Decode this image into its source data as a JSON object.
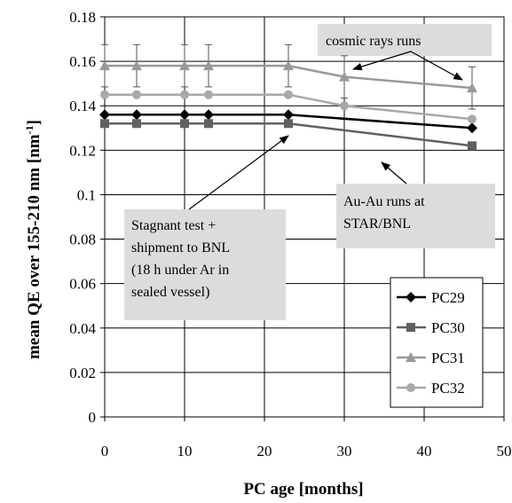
{
  "chart_data": {
    "type": "line",
    "xlabel": "PC age [months]",
    "ylabel": "mean QE over 155-210 nm  [nm",
    "ylabel_sup": "-1",
    "ylabel_end": "]",
    "xlim": [
      0,
      50
    ],
    "ylim": [
      0,
      0.18
    ],
    "x_ticks": [
      "0",
      "10",
      "20",
      "30",
      "40",
      "50"
    ],
    "y_ticks": [
      "0",
      "0.02",
      "0.04",
      "0.06",
      "0.08",
      "0.1",
      "0.12",
      "0.14",
      "0.16",
      "0.18"
    ],
    "grid": true,
    "legend_position": "bottom-right",
    "series": [
      {
        "name": "PC29",
        "color": "#000000",
        "marker": "diamond",
        "x": [
          0,
          4,
          10,
          13,
          23,
          46
        ],
        "y": [
          0.136,
          0.136,
          0.136,
          0.136,
          0.136,
          0.13
        ]
      },
      {
        "name": "PC30",
        "color": "#606060",
        "marker": "square",
        "x": [
          0,
          4,
          10,
          13,
          23,
          46
        ],
        "y": [
          0.132,
          0.132,
          0.132,
          0.132,
          0.132,
          0.122
        ]
      },
      {
        "name": "PC31",
        "color": "#999999",
        "marker": "triangle",
        "x": [
          0,
          4,
          10,
          13,
          23,
          30,
          46
        ],
        "y": [
          0.158,
          0.158,
          0.158,
          0.158,
          0.158,
          0.153,
          0.148
        ],
        "error": 0.0095
      },
      {
        "name": "PC32",
        "color": "#a8a8a8",
        "marker": "circle",
        "x": [
          0,
          4,
          10,
          13,
          23,
          30,
          46
        ],
        "y": [
          0.145,
          0.145,
          0.145,
          0.145,
          0.145,
          0.14,
          0.134
        ]
      }
    ],
    "annotations": [
      {
        "name": "cosmic",
        "lines": [
          "cosmic rays runs"
        ]
      },
      {
        "name": "auau",
        "lines": [
          "Au-Au runs at",
          "STAR/BNL"
        ]
      },
      {
        "name": "stagnant",
        "lines": [
          "Stagnant test +",
          "shipment to BNL",
          "(18 h under Ar in",
          "sealed vessel)"
        ]
      }
    ]
  }
}
